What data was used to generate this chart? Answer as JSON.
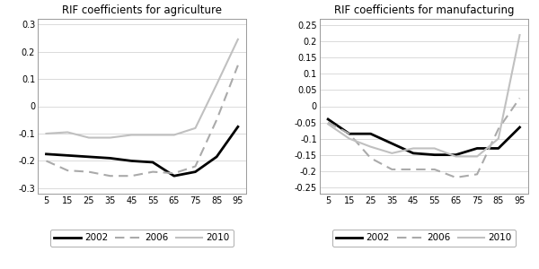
{
  "x": [
    5,
    15,
    25,
    35,
    45,
    55,
    65,
    75,
    85,
    95
  ],
  "agr_2002": [
    -0.175,
    -0.18,
    -0.185,
    -0.19,
    -0.2,
    -0.205,
    -0.255,
    -0.24,
    -0.185,
    -0.075
  ],
  "agr_2006": [
    -0.2,
    -0.235,
    -0.24,
    -0.255,
    -0.255,
    -0.24,
    -0.245,
    -0.22,
    -0.05,
    0.15
  ],
  "agr_2010": [
    -0.1,
    -0.095,
    -0.115,
    -0.115,
    -0.105,
    -0.105,
    -0.105,
    -0.08,
    0.08,
    0.245
  ],
  "man_2002": [
    -0.04,
    -0.085,
    -0.085,
    -0.115,
    -0.145,
    -0.15,
    -0.15,
    -0.13,
    -0.13,
    -0.065
  ],
  "man_2006": [
    -0.05,
    -0.085,
    -0.16,
    -0.195,
    -0.195,
    -0.195,
    -0.22,
    -0.21,
    -0.07,
    0.025
  ],
  "man_2010": [
    -0.055,
    -0.1,
    -0.125,
    -0.145,
    -0.13,
    -0.13,
    -0.155,
    -0.155,
    -0.1,
    0.22
  ],
  "title_agr": "RIF coefficients for agriculture",
  "title_man": "RIF coefficients for manufacturing",
  "ylim_agr": [
    -0.32,
    0.32
  ],
  "yticks_agr": [
    -0.3,
    -0.2,
    -0.1,
    0,
    0.1,
    0.2,
    0.3
  ],
  "ylim_man": [
    -0.27,
    0.27
  ],
  "yticks_man": [
    -0.25,
    -0.2,
    -0.15,
    -0.1,
    -0.05,
    0,
    0.05,
    0.1,
    0.15,
    0.2,
    0.25
  ],
  "legend_labels": [
    "2002",
    "2006",
    "2010"
  ],
  "color_2002": "#000000",
  "color_2006": "#aaaaaa",
  "color_2010": "#c0c0c0",
  "lw_2002": 2.0,
  "lw_2006": 1.5,
  "lw_2010": 1.5,
  "title_fontsize": 8.5,
  "tick_fontsize": 7.0,
  "legend_fontsize": 7.5
}
